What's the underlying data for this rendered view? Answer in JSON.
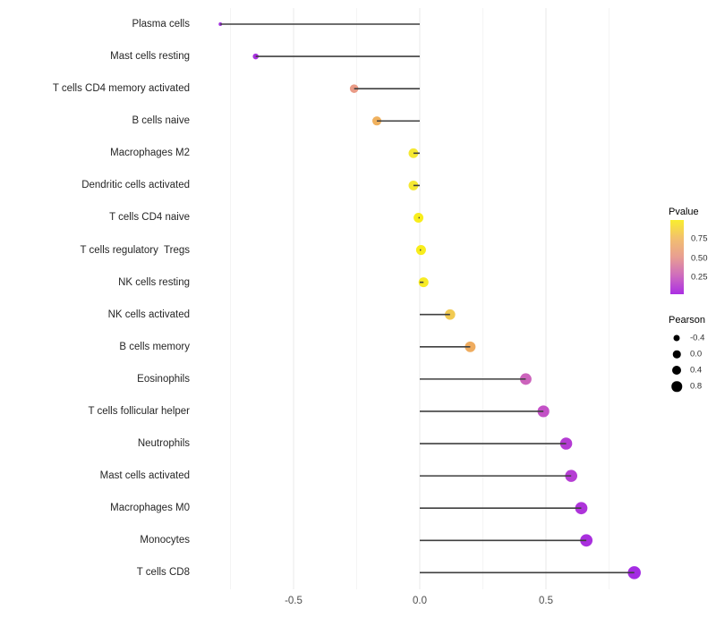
{
  "chart_data": {
    "type": "lollipop",
    "title": "",
    "xlabel": "",
    "ylabel": "",
    "xlim": [
      -0.875,
      0.9
    ],
    "x_major_breaks": [
      -0.5,
      0.0,
      0.5
    ],
    "x_major_labels": [
      "-0.5",
      "0.0",
      "0.5"
    ],
    "x_minor_breaks": [
      -0.75,
      -0.25,
      0.25,
      0.75
    ],
    "grid": "vertical-only, light gray, minimal theme",
    "categories": [
      "Plasma cells",
      "Mast cells resting",
      "T cells CD4 memory activated",
      "B cells naive",
      "Macrophages M2",
      "Dendritic cells activated",
      "T cells CD4 naive",
      "T cells regulatory  Tregs",
      "NK cells resting",
      "NK cells activated",
      "B cells memory",
      "Eosinophils",
      "T cells follicular helper",
      "Neutrophils",
      "Mast cells activated",
      "Macrophages M0",
      "Monocytes",
      "T cells CD8"
    ],
    "points": [
      {
        "label": "Plasma cells",
        "pearson": -0.79,
        "pvalue": 0.1,
        "color": "#A133DE"
      },
      {
        "label": "Mast cells resting",
        "pearson": -0.65,
        "pvalue": 0.12,
        "color": "#A832E0"
      },
      {
        "label": "T cells CD4 memory activated",
        "pearson": -0.26,
        "pvalue": 0.55,
        "color": "#E99B86"
      },
      {
        "label": "B cells naive",
        "pearson": -0.17,
        "pvalue": 0.62,
        "color": "#F0B15E"
      },
      {
        "label": "Macrophages M2",
        "pearson": -0.025,
        "pvalue": 0.88,
        "color": "#F5E832"
      },
      {
        "label": "Dendritic cells activated",
        "pearson": -0.025,
        "pvalue": 0.88,
        "color": "#F5E832"
      },
      {
        "label": "T cells CD4 naive",
        "pearson": -0.005,
        "pvalue": 0.92,
        "color": "#F8ED1C"
      },
      {
        "label": "T cells regulatory  Tregs",
        "pearson": 0.005,
        "pvalue": 0.92,
        "color": "#F8ED1C"
      },
      {
        "label": "NK cells resting",
        "pearson": 0.015,
        "pvalue": 0.9,
        "color": "#F7EB24"
      },
      {
        "label": "NK cells activated",
        "pearson": 0.12,
        "pvalue": 0.74,
        "color": "#F1CA52"
      },
      {
        "label": "B cells memory",
        "pearson": 0.2,
        "pvalue": 0.62,
        "color": "#EFAC5F"
      },
      {
        "label": "Eosinophils",
        "pearson": 0.42,
        "pvalue": 0.36,
        "color": "#CC63BC"
      },
      {
        "label": "T cells follicular helper",
        "pearson": 0.49,
        "pvalue": 0.3,
        "color": "#C351C6"
      },
      {
        "label": "Neutrophils",
        "pearson": 0.58,
        "pvalue": 0.2,
        "color": "#B43BD3"
      },
      {
        "label": "Mast cells activated",
        "pearson": 0.6,
        "pvalue": 0.18,
        "color": "#B63ED4"
      },
      {
        "label": "Macrophages M0",
        "pearson": 0.64,
        "pvalue": 0.13,
        "color": "#AE34DA"
      },
      {
        "label": "Monocytes",
        "pearson": 0.66,
        "pvalue": 0.11,
        "color": "#A92FDE"
      },
      {
        "label": "T cells CD8",
        "pearson": 0.85,
        "pvalue": 0.04,
        "color": "#A42CE3"
      }
    ],
    "legend": {
      "pvalue": {
        "title": "Pvalue",
        "tick_labels": [
          "0.75",
          "0.50",
          "0.25"
        ],
        "tick_values": [
          0.75,
          0.5,
          0.25
        ],
        "range": [
          1.0,
          0.03
        ],
        "gradient_top_to_bottom": [
          "#F9EE2E",
          "#F2BF6F",
          "#E89E92",
          "#CE6CBE",
          "#AB2EE3"
        ]
      },
      "pearson": {
        "title": "Pearson",
        "items": [
          {
            "label": "-0.4",
            "value": -0.4
          },
          {
            "label": "0.0",
            "value": 0.0
          },
          {
            "label": "0.4",
            "value": 0.4
          },
          {
            "label": "0.8",
            "value": 0.8
          }
        ]
      }
    },
    "colors": {
      "stem": "#3F3F3F",
      "grid_major": "#E8E8E8",
      "grid_minor": "#F4F4F4",
      "axis_text": "#4D4D4D",
      "category_text": "#262626",
      "background": "#FFFFFF"
    }
  }
}
